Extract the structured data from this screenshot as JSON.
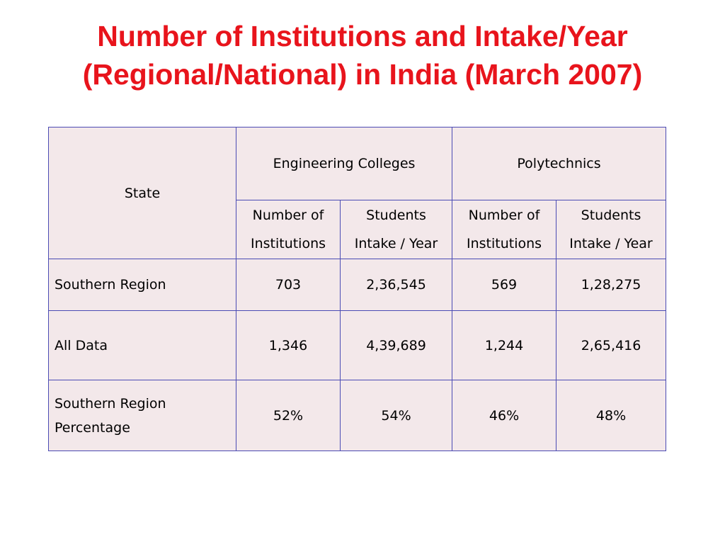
{
  "title": {
    "line1": "Number of Institutions and Intake/Year",
    "line2": "(Regional/National) in India (March 2007)"
  },
  "table": {
    "header": {
      "state": "State",
      "engineering": "Engineering Colleges",
      "polytechnics": "Polytechnics",
      "num_inst_l1": "Number of",
      "num_inst_l2": "Institutions",
      "students_l1": "Students",
      "students_l2": "Intake / Year"
    },
    "rows": [
      {
        "label": "Southern Region",
        "eng_inst": "703",
        "eng_intake": "2,36,545",
        "poly_inst": "569",
        "poly_intake": "1,28,275"
      },
      {
        "label": "All Data",
        "eng_inst": "1,346",
        "eng_intake": "4,39,689",
        "poly_inst": "1,244",
        "poly_intake": "2,65,416"
      },
      {
        "label_l1": "Southern Region",
        "label_l2": "Percentage",
        "eng_inst": "52%",
        "eng_intake": "54%",
        "poly_inst": "46%",
        "poly_intake": "48%"
      }
    ]
  }
}
